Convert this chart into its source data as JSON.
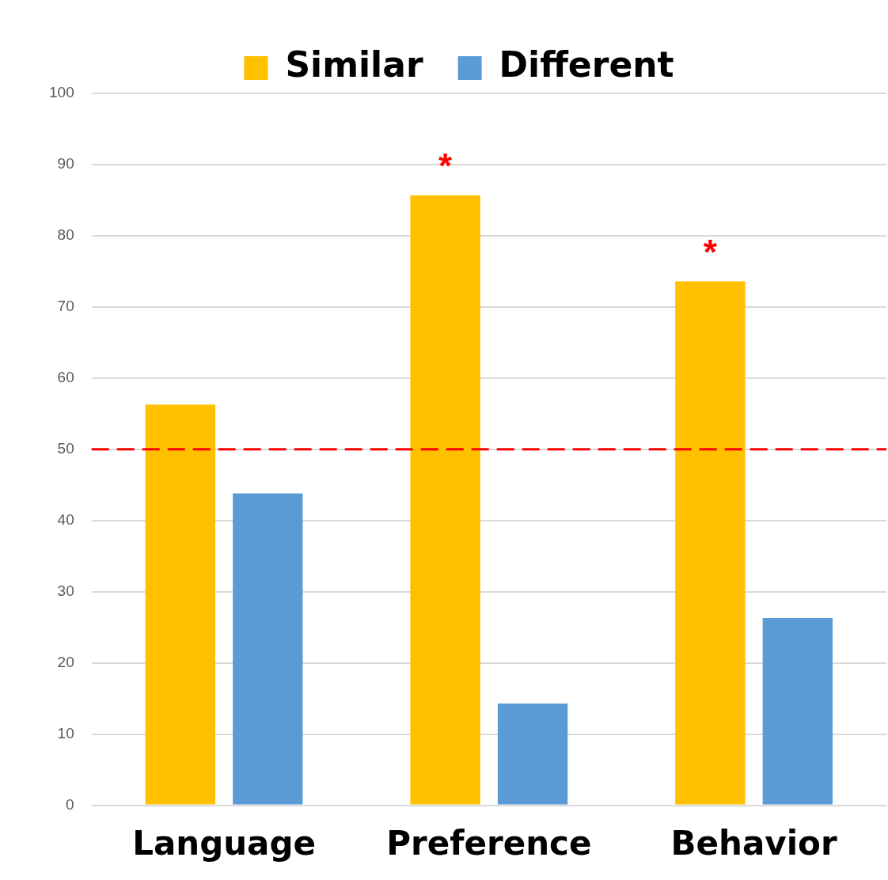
{
  "chart_data": {
    "type": "bar",
    "categories": [
      "Language",
      "Preference",
      "Behavior"
    ],
    "series": [
      {
        "name": "Similar",
        "color": "#ffc000",
        "values": [
          56.3,
          85.7,
          73.6
        ],
        "value_labels": [
          null,
          "*",
          "*"
        ]
      },
      {
        "name": "Different",
        "color": "#5b9bd5",
        "values": [
          43.8,
          14.3,
          26.3
        ]
      }
    ],
    "ylim": [
      0,
      100
    ],
    "yticks": [
      0,
      10,
      20,
      30,
      40,
      50,
      60,
      70,
      80,
      90,
      100
    ],
    "grid": "y",
    "legend": "top",
    "ref_lines": [
      {
        "axis": "y",
        "value": 50,
        "color": "#ff0000",
        "line_style": "dashed"
      }
    ]
  }
}
